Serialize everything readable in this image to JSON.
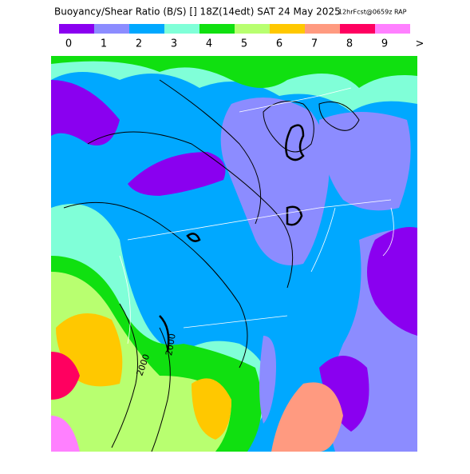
{
  "header": {
    "title": "Buoyancy/Shear Ratio (B/S) [] 18Z(14edt) SAT 24 May 2025",
    "forecast": "12hrFcst@0659z RAP"
  },
  "legend": {
    "colors": [
      "#8a00f0",
      "#8c8cff",
      "#00a8ff",
      "#80ffd8",
      "#10e010",
      "#b8ff70",
      "#ffc800",
      "#ff9a80",
      "#ff0060",
      "#ff80ff"
    ],
    "labels": [
      "0",
      "1",
      "2",
      "3",
      "4",
      "5",
      "6",
      "7",
      "8",
      "9",
      ">"
    ]
  },
  "contour_labels": [
    "2000",
    "2000"
  ]
}
